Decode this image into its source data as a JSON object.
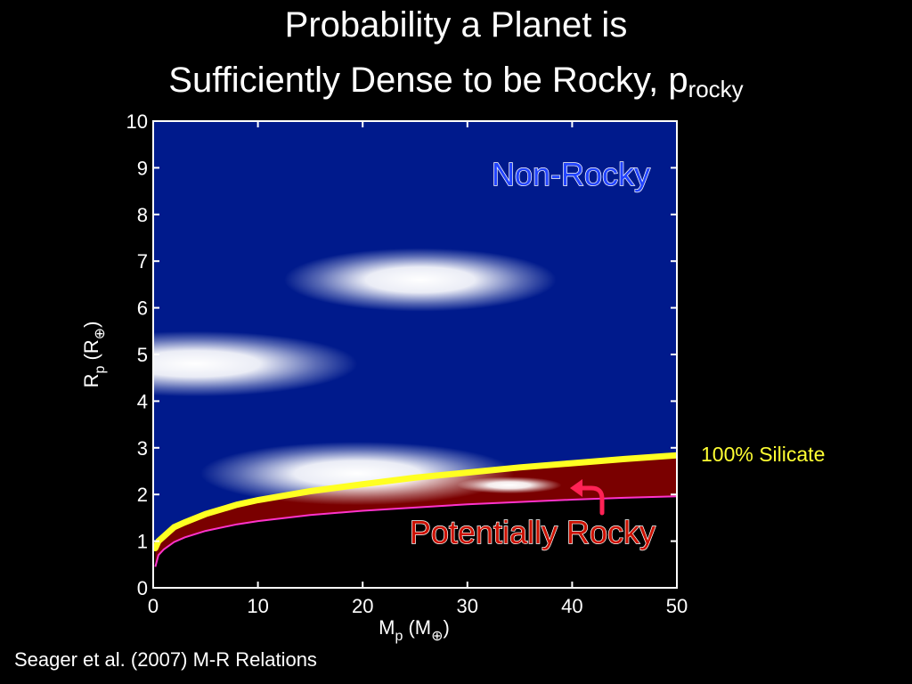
{
  "title": {
    "line1": "Probability a Planet is",
    "line2_main": "Sufficiently Dense to be Rocky, p",
    "line2_sub": "rocky"
  },
  "chart_data": {
    "type": "heatmap",
    "xlabel": "M_p (M_⊕)",
    "ylabel": "R_p (R_⊕)",
    "xlim": [
      0,
      50
    ],
    "ylim": [
      0,
      10
    ],
    "xticks": [
      "0",
      "10",
      "20",
      "30",
      "40",
      "50"
    ],
    "yticks": [
      "0",
      "1",
      "2",
      "3",
      "4",
      "5",
      "6",
      "7",
      "8",
      "9",
      "10"
    ],
    "background_color": "#001a8c",
    "rocky_region_color": "#7a0000",
    "silicate_curve": {
      "label": "100% Silicate",
      "color": "#ffff22",
      "points": [
        [
          0.2,
          0.85
        ],
        [
          0.5,
          1.0
        ],
        [
          1,
          1.1
        ],
        [
          2,
          1.3
        ],
        [
          3,
          1.4
        ],
        [
          5,
          1.58
        ],
        [
          8,
          1.78
        ],
        [
          10,
          1.88
        ],
        [
          15,
          2.07
        ],
        [
          20,
          2.22
        ],
        [
          25,
          2.36
        ],
        [
          30,
          2.47
        ],
        [
          35,
          2.58
        ],
        [
          40,
          2.67
        ],
        [
          45,
          2.76
        ],
        [
          50,
          2.84
        ]
      ]
    },
    "lower_curve": {
      "color": "#ff33cc",
      "points": [
        [
          0.2,
          0.45
        ],
        [
          0.5,
          0.7
        ],
        [
          1,
          0.82
        ],
        [
          2,
          0.98
        ],
        [
          3,
          1.08
        ],
        [
          5,
          1.22
        ],
        [
          8,
          1.36
        ],
        [
          10,
          1.43
        ],
        [
          15,
          1.56
        ],
        [
          20,
          1.65
        ],
        [
          25,
          1.72
        ],
        [
          30,
          1.79
        ],
        [
          35,
          1.84
        ],
        [
          40,
          1.89
        ],
        [
          45,
          1.93
        ],
        [
          50,
          1.96
        ]
      ]
    },
    "hotspots": [
      {
        "x": 25.5,
        "y": 6.6,
        "rx": 13.0,
        "ry": 0.68
      },
      {
        "x": 4.0,
        "y": 4.8,
        "rx": 15.5,
        "ry": 0.7
      },
      {
        "x": 19.5,
        "y": 2.45,
        "rx": 15.0,
        "ry": 0.68
      },
      {
        "x": 34.0,
        "y": 2.2,
        "rx": 5.0,
        "ry": 0.18
      }
    ],
    "annotations": {
      "non_rocky": "Non-Rocky",
      "potentially_rocky": "Potentially Rocky"
    },
    "colors": {
      "non_rocky_text": "#2244ff",
      "potentially_rocky_text": "#cc1100",
      "arrow": "#ff2255"
    }
  },
  "legend": {
    "silicate_label": "100% Silicate"
  },
  "citation": "Seager et al. (2007) M-R Relations"
}
